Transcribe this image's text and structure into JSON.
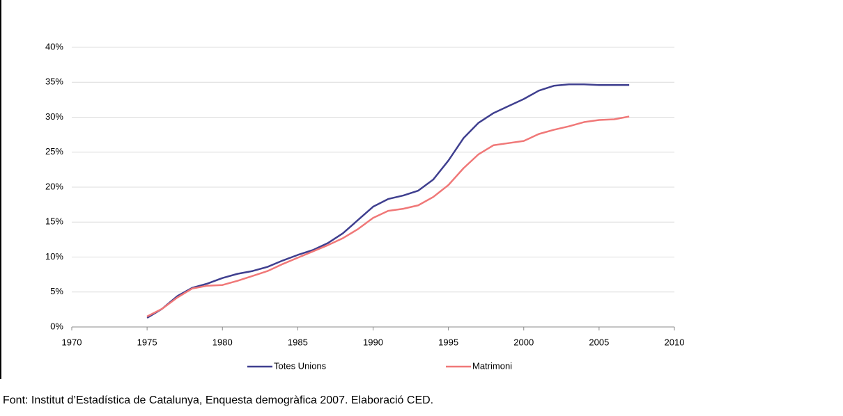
{
  "chart_data": {
    "type": "line",
    "x": [
      1975,
      1976,
      1977,
      1978,
      1979,
      1980,
      1981,
      1982,
      1983,
      1984,
      1985,
      1986,
      1987,
      1988,
      1989,
      1990,
      1991,
      1992,
      1993,
      1994,
      1995,
      1996,
      1997,
      1998,
      1999,
      2000,
      2001,
      2002,
      2003,
      2004,
      2005,
      2006,
      2007
    ],
    "series": [
      {
        "name": "Totes Unions",
        "color": "#3f3f8f",
        "values": [
          1.3,
          2.6,
          4.4,
          5.6,
          6.2,
          7.0,
          7.6,
          8.0,
          8.6,
          9.5,
          10.3,
          11.0,
          12.0,
          13.4,
          15.3,
          17.2,
          18.3,
          18.8,
          19.5,
          21.1,
          23.8,
          27.0,
          29.2,
          30.6,
          31.6,
          32.6,
          33.8,
          34.5,
          34.7,
          34.7,
          34.6,
          34.6,
          34.6
        ]
      },
      {
        "name": "Matrimoni",
        "color": "#f07878",
        "values": [
          1.5,
          2.6,
          4.2,
          5.5,
          5.9,
          6.0,
          6.6,
          7.3,
          8.0,
          9.0,
          9.9,
          10.8,
          11.7,
          12.7,
          14.0,
          15.6,
          16.6,
          16.9,
          17.4,
          18.6,
          20.3,
          22.7,
          24.7,
          26.0,
          26.3,
          26.6,
          27.6,
          28.2,
          28.7,
          29.3,
          29.6,
          29.7,
          30.1
        ]
      }
    ],
    "xlim": [
      1970,
      2010
    ],
    "xticks": [
      1970,
      1975,
      1980,
      1985,
      1990,
      1995,
      2000,
      2005,
      2010
    ],
    "ylim": [
      0,
      40
    ],
    "yticks": [
      {
        "value": 0,
        "label": "0%"
      },
      {
        "value": 5,
        "label": "5%"
      },
      {
        "value": 10,
        "label": "10%"
      },
      {
        "value": 15,
        "label": "15%"
      },
      {
        "value": 20,
        "label": "20%"
      },
      {
        "value": 25,
        "label": "25%"
      },
      {
        "value": 30,
        "label": "30%"
      },
      {
        "value": 35,
        "label": "35%"
      },
      {
        "value": 40,
        "label": "40%"
      }
    ],
    "grid": true,
    "source": "Font: Institut d’Estadística de Catalunya, Enquesta demogràfica 2007. Elaboració CED."
  }
}
